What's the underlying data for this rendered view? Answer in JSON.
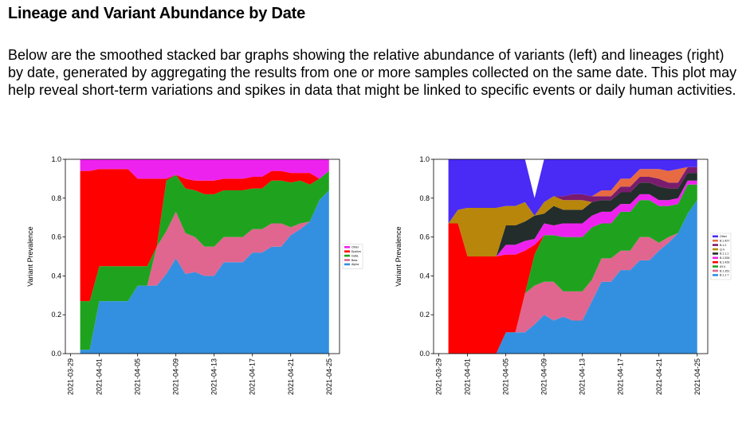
{
  "page": {
    "title": "Lineage and Variant Abundance by Date",
    "description": "Below are the smoothed stacked bar graphs showing the relative abundance of variants (left) and lineages (right) by date, generated by aggregating the results from one or more samples collected on the same date. This plot may help reveal short-term variations and spikes in data that might be linked to specific events or daily human activities."
  },
  "chart_data": [
    {
      "type": "area",
      "stacked": true,
      "title": "",
      "xlabel": "",
      "ylabel": "Variant Prevalence",
      "ylim": [
        0,
        1.0
      ],
      "yticks": [
        "0.0",
        "0.2",
        "0.4",
        "0.6",
        "0.8",
        "1.0"
      ],
      "xticks": [
        "2021-03-29",
        "2021-04-01",
        "2021-04-05",
        "2021-04-09",
        "2021-04-13",
        "2021-04-17",
        "2021-04-21",
        "2021-04-25"
      ],
      "legend_location": "right",
      "grid": false,
      "x": [
        "2021-03-30",
        "2021-03-31",
        "2021-04-01",
        "2021-04-02",
        "2021-04-03",
        "2021-04-04",
        "2021-04-05",
        "2021-04-06",
        "2021-04-07",
        "2021-04-08",
        "2021-04-09",
        "2021-04-10",
        "2021-04-11",
        "2021-04-12",
        "2021-04-13",
        "2021-04-14",
        "2021-04-15",
        "2021-04-16",
        "2021-04-17",
        "2021-04-18",
        "2021-04-19",
        "2021-04-20",
        "2021-04-21",
        "2021-04-22",
        "2021-04-23",
        "2021-04-24",
        "2021-04-25"
      ],
      "series": [
        {
          "name": "Alpha",
          "color": "#3390e0",
          "values": [
            0.02,
            0.02,
            0.27,
            0.27,
            0.27,
            0.27,
            0.35,
            0.35,
            0.35,
            0.41,
            0.49,
            0.41,
            0.42,
            0.4,
            0.4,
            0.47,
            0.47,
            0.47,
            0.52,
            0.52,
            0.55,
            0.55,
            0.61,
            0.64,
            0.68,
            0.79,
            0.84
          ]
        },
        {
          "name": "Beta",
          "color": "#e0668f",
          "values": [
            0.0,
            0.0,
            0.0,
            0.0,
            0.0,
            0.0,
            0.0,
            0.0,
            0.2,
            0.22,
            0.24,
            0.21,
            0.18,
            0.15,
            0.15,
            0.13,
            0.13,
            0.13,
            0.12,
            0.12,
            0.12,
            0.12,
            0.04,
            0.03,
            0.0,
            0.0,
            0.0
          ]
        },
        {
          "name": "Delta",
          "color": "#1fa31f",
          "values": [
            0.25,
            0.25,
            0.18,
            0.18,
            0.18,
            0.18,
            0.1,
            0.1,
            0.0,
            0.26,
            0.19,
            0.23,
            0.24,
            0.27,
            0.27,
            0.24,
            0.24,
            0.24,
            0.21,
            0.21,
            0.22,
            0.22,
            0.23,
            0.22,
            0.19,
            0.11,
            0.1
          ]
        },
        {
          "name": "Epsilon",
          "color": "#ff0000",
          "values": [
            0.67,
            0.67,
            0.5,
            0.5,
            0.5,
            0.5,
            0.45,
            0.45,
            0.35,
            0.01,
            0.0,
            0.05,
            0.05,
            0.07,
            0.07,
            0.06,
            0.06,
            0.06,
            0.06,
            0.06,
            0.05,
            0.05,
            0.05,
            0.04,
            0.06,
            0.0,
            0.0
          ]
        },
        {
          "name": "Other",
          "color": "#ee22ee",
          "values": [
            0.06,
            0.06,
            0.05,
            0.05,
            0.05,
            0.05,
            0.1,
            0.1,
            0.1,
            0.1,
            0.08,
            0.1,
            0.11,
            0.11,
            0.11,
            0.1,
            0.1,
            0.1,
            0.09,
            0.09,
            0.06,
            0.06,
            0.07,
            0.07,
            0.07,
            0.1,
            0.06
          ]
        }
      ]
    },
    {
      "type": "area",
      "stacked": true,
      "title": "",
      "xlabel": "",
      "ylabel": "Variant Prevalence",
      "ylim": [
        0,
        1.0
      ],
      "yticks": [
        "0.0",
        "0.2",
        "0.4",
        "0.6",
        "0.8",
        "1.0"
      ],
      "xticks": [
        "2021-03-29",
        "2021-04-01",
        "2021-04-05",
        "2021-04-09",
        "2021-04-13",
        "2021-04-17",
        "2021-04-21",
        "2021-04-25"
      ],
      "legend_location": "right",
      "grid": false,
      "x": [
        "2021-03-30",
        "2021-03-31",
        "2021-04-01",
        "2021-04-02",
        "2021-04-03",
        "2021-04-04",
        "2021-04-05",
        "2021-04-06",
        "2021-04-07",
        "2021-04-08",
        "2021-04-09",
        "2021-04-10",
        "2021-04-11",
        "2021-04-12",
        "2021-04-13",
        "2021-04-14",
        "2021-04-15",
        "2021-04-16",
        "2021-04-17",
        "2021-04-18",
        "2021-04-19",
        "2021-04-20",
        "2021-04-21",
        "2021-04-22",
        "2021-04-23",
        "2021-04-24",
        "2021-04-25"
      ],
      "series": [
        {
          "name": "B.1.1.7",
          "color": "#3390e0",
          "values": [
            0.0,
            0.0,
            0.0,
            0.0,
            0.0,
            0.0,
            0.11,
            0.11,
            0.11,
            0.15,
            0.2,
            0.17,
            0.19,
            0.17,
            0.17,
            0.27,
            0.37,
            0.37,
            0.43,
            0.43,
            0.48,
            0.48,
            0.53,
            0.57,
            0.62,
            0.72,
            0.79
          ]
        },
        {
          "name": "B.1.351",
          "color": "#e0668f",
          "values": [
            0.0,
            0.0,
            0.0,
            0.0,
            0.0,
            0.0,
            0.0,
            0.0,
            0.2,
            0.2,
            0.17,
            0.2,
            0.13,
            0.15,
            0.15,
            0.11,
            0.12,
            0.12,
            0.1,
            0.1,
            0.12,
            0.12,
            0.04,
            0.03,
            0.0,
            0.0,
            0.0
          ]
        },
        {
          "name": "AY.4",
          "color": "#1fa31f",
          "values": [
            0.0,
            0.0,
            0.0,
            0.0,
            0.0,
            0.0,
            0.0,
            0.0,
            0.0,
            0.16,
            0.24,
            0.24,
            0.28,
            0.28,
            0.28,
            0.27,
            0.18,
            0.18,
            0.2,
            0.2,
            0.19,
            0.19,
            0.19,
            0.16,
            0.15,
            0.15,
            0.08
          ]
        },
        {
          "name": "B.1.429",
          "color": "#ff0000",
          "values": [
            0.67,
            0.67,
            0.5,
            0.5,
            0.5,
            0.5,
            0.4,
            0.4,
            0.22,
            0.05,
            0.0,
            0.0,
            0.0,
            0.0,
            0.0,
            0.0,
            0.0,
            0.0,
            0.0,
            0.0,
            0.0,
            0.0,
            0.0,
            0.0,
            0.0,
            0.0,
            0.0
          ]
        },
        {
          "name": "B.1.526",
          "color": "#ee22ee",
          "values": [
            0.0,
            0.0,
            0.0,
            0.0,
            0.0,
            0.0,
            0.05,
            0.05,
            0.05,
            0.03,
            0.06,
            0.05,
            0.07,
            0.07,
            0.07,
            0.06,
            0.06,
            0.06,
            0.04,
            0.04,
            0.03,
            0.03,
            0.03,
            0.03,
            0.03,
            0.02,
            0.02
          ]
        },
        {
          "name": "B.1.1.1",
          "color": "#232d2b",
          "values": [
            0.0,
            0.0,
            0.0,
            0.0,
            0.0,
            0.0,
            0.1,
            0.1,
            0.1,
            0.12,
            0.05,
            0.1,
            0.07,
            0.07,
            0.07,
            0.07,
            0.06,
            0.06,
            0.06,
            0.06,
            0.06,
            0.06,
            0.07,
            0.06,
            0.05,
            0.04,
            0.04
          ]
        },
        {
          "name": "Q.4",
          "color": "#b8860b",
          "values": [
            0.0,
            0.07,
            0.25,
            0.25,
            0.25,
            0.25,
            0.1,
            0.1,
            0.1,
            0.0,
            0.06,
            0.05,
            0.05,
            0.05,
            0.05,
            0.0,
            0.0,
            0.0,
            0.0,
            0.0,
            0.0,
            0.0,
            0.0,
            0.0,
            0.0,
            0.0,
            0.0
          ]
        },
        {
          "name": "B.1.2",
          "color": "#7a1c6e",
          "values": [
            0.0,
            0.0,
            0.0,
            0.0,
            0.0,
            0.0,
            0.0,
            0.0,
            0.0,
            0.0,
            0.0,
            0.0,
            0.02,
            0.03,
            0.03,
            0.03,
            0.02,
            0.02,
            0.03,
            0.03,
            0.03,
            0.03,
            0.04,
            0.03,
            0.03,
            0.03,
            0.03
          ]
        },
        {
          "name": "B.1.427",
          "color": "#e86a43",
          "values": [
            0.0,
            0.0,
            0.0,
            0.0,
            0.0,
            0.0,
            0.0,
            0.0,
            0.0,
            0.0,
            0.0,
            0.0,
            0.0,
            0.0,
            0.0,
            0.0,
            0.03,
            0.03,
            0.04,
            0.04,
            0.04,
            0.04,
            0.05,
            0.06,
            0.07,
            0.0,
            0.0
          ]
        },
        {
          "name": "Other",
          "color": "#4a2af5",
          "values": [
            0.33,
            0.26,
            0.25,
            0.25,
            0.25,
            0.25,
            0.24,
            0.24,
            0.22,
            0.09,
            0.22,
            0.19,
            0.19,
            0.18,
            0.18,
            0.19,
            0.16,
            0.16,
            0.1,
            0.1,
            0.05,
            0.05,
            0.05,
            0.06,
            0.05,
            0.04,
            0.04
          ]
        }
      ]
    }
  ]
}
